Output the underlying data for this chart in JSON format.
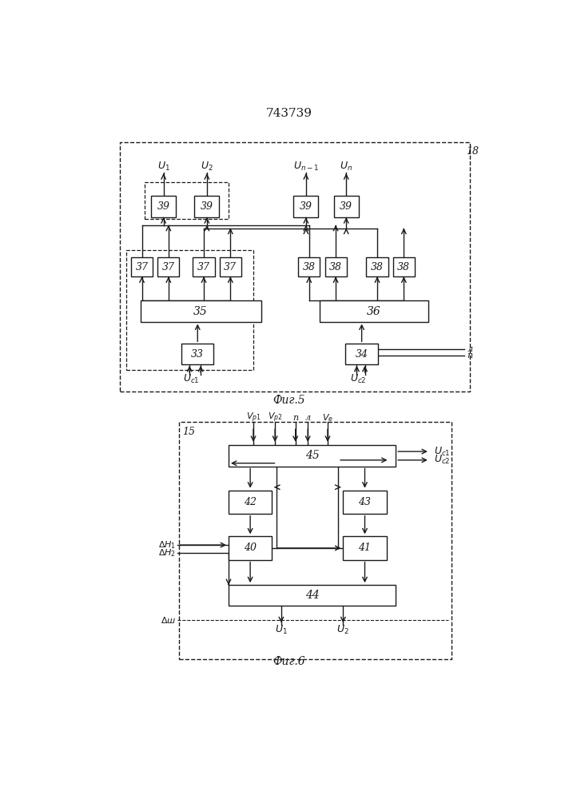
{
  "title": "743739",
  "fig5_label": "Фиг.5",
  "fig6_label": "Фиг.6",
  "bg_color": "#ffffff",
  "line_color": "#1a1a1a",
  "box_color": "#ffffff"
}
